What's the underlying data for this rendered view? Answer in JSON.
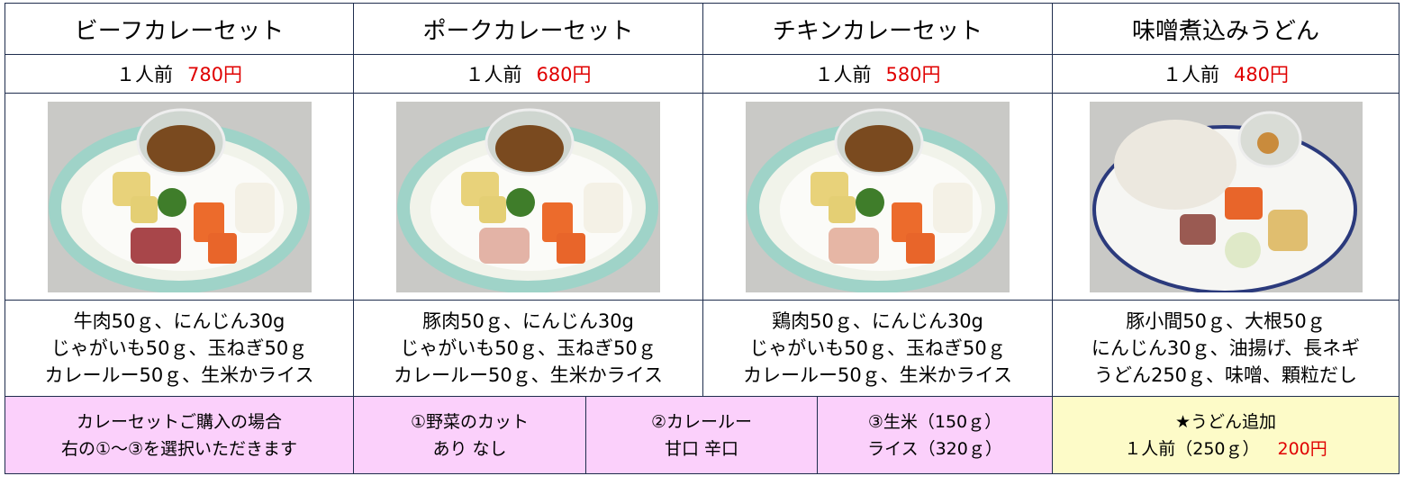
{
  "menu": [
    {
      "name": "ビーフカレーセット",
      "serving": "１人前",
      "price": "780円",
      "ingredients": [
        "牛肉50ｇ、にんじん30g",
        "じゃがいも50ｇ、玉ねぎ50ｇ",
        "カレールー50ｇ、生米かライス"
      ]
    },
    {
      "name": "ポークカレーセット",
      "serving": "１人前",
      "price": "680円",
      "ingredients": [
        "豚肉50ｇ、にんじん30g",
        "じゃがいも50ｇ、玉ねぎ50ｇ",
        "カレールー50ｇ、生米かライス"
      ]
    },
    {
      "name": "チキンカレーセット",
      "serving": "１人前",
      "price": "580円",
      "ingredients": [
        "鶏肉50ｇ、にんじん30g",
        "じゃがいも50ｇ、玉ねぎ50ｇ",
        "カレールー50ｇ、生米かライス"
      ]
    },
    {
      "name": "味噌煮込みうどん",
      "serving": "１人前",
      "price": "480円",
      "ingredients": [
        "豚小間50ｇ、大根50ｇ",
        "にんじん30ｇ、油揚げ、長ネギ",
        "うどん250ｇ、味噌、顆粒だし"
      ]
    }
  ],
  "options": {
    "note": [
      "カレーセットご購入の場合",
      "右の①～③を選択いただきます"
    ],
    "choices": [
      [
        "①野菜のカット",
        "あり なし"
      ],
      [
        "②カレールー",
        "甘口 辛口"
      ],
      [
        "③生米（150ｇ）",
        "ライス（320ｇ）"
      ]
    ],
    "udon_extra": {
      "title": "★うどん追加",
      "serving": "１人前（250ｇ）",
      "price": "200円"
    }
  }
}
